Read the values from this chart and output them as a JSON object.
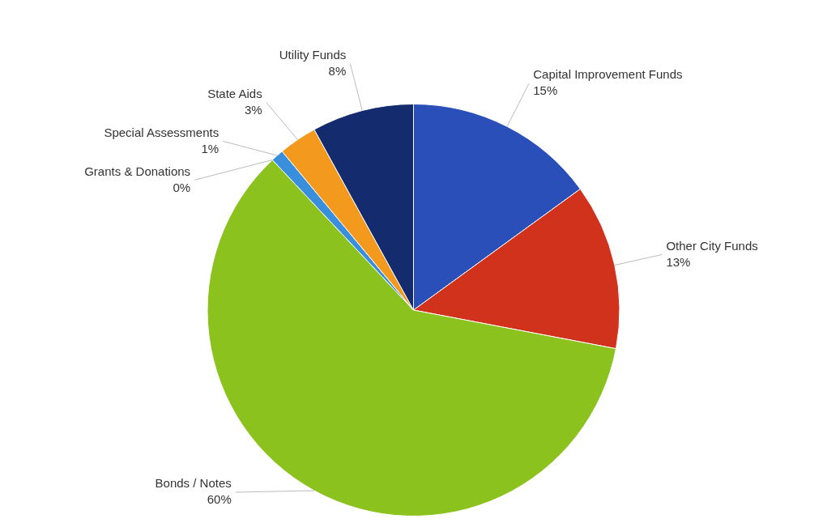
{
  "chart_data": {
    "type": "pie",
    "categories": [
      "Capital Improvement Funds",
      "Other City Funds",
      "Bonds / Notes",
      "Grants & Donations",
      "Special Assessments",
      "State Aids",
      "Utility Funds"
    ],
    "values": [
      15,
      13,
      60,
      0,
      1,
      3,
      8
    ],
    "colors": [
      "#2a4fb8",
      "#d0321c",
      "#8cc21e",
      "#5a3e8a",
      "#3a8fdc",
      "#f39a1e",
      "#142c6e"
    ],
    "value_labels": [
      "15%",
      "13%",
      "60%",
      "0%",
      "1%",
      "3%",
      "8%"
    ],
    "legend": false
  }
}
